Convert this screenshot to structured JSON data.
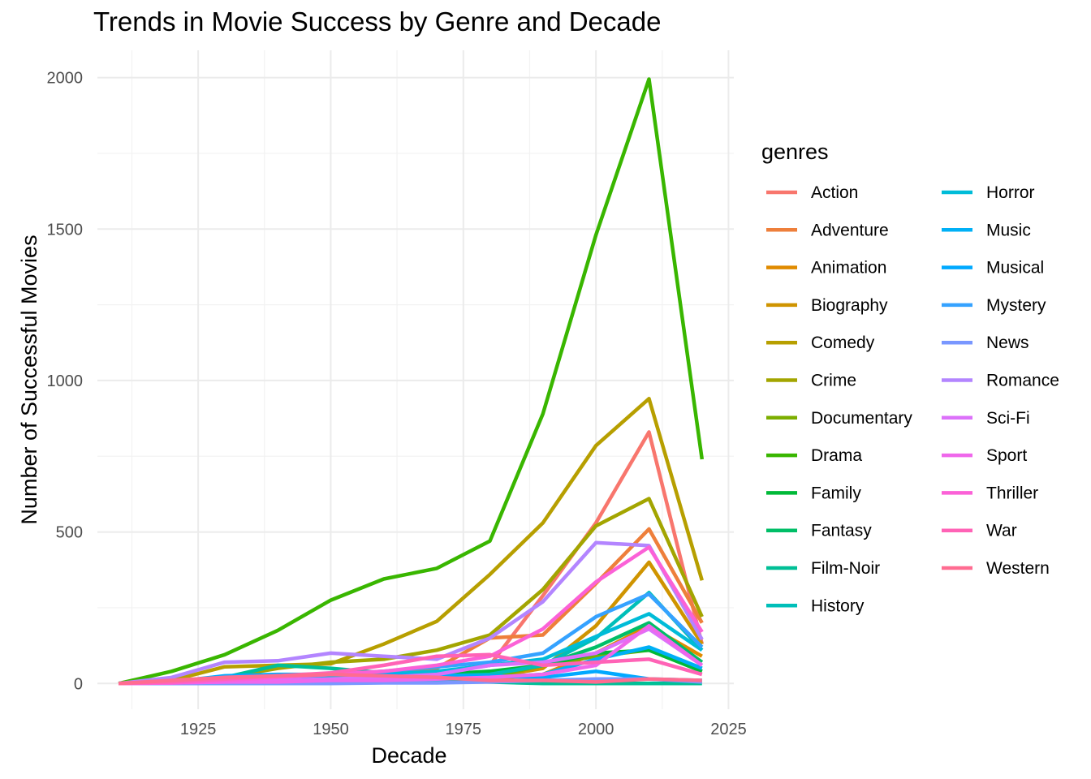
{
  "chart_data": {
    "type": "line",
    "title": "Trends in Movie Success by Genre and Decade",
    "xlabel": "Decade",
    "ylabel": "Number of Successful Movies",
    "xlim": [
      1906,
      2026
    ],
    "ylim": [
      -85,
      2090
    ],
    "x_ticks": [
      1925,
      1950,
      1975,
      2000,
      2025
    ],
    "y_ticks": [
      0,
      500,
      1000,
      1500,
      2000
    ],
    "grid": true,
    "legend": {
      "title": "genres",
      "position": "right",
      "columns": 2
    },
    "x": [
      1910,
      1920,
      1930,
      1940,
      1950,
      1960,
      1970,
      1980,
      1990,
      2000,
      2010,
      2020
    ],
    "series": [
      {
        "name": "Action",
        "color": "#F8766D",
        "values": [
          0,
          2,
          10,
          15,
          20,
          25,
          35,
          60,
          290,
          530,
          830,
          130
        ]
      },
      {
        "name": "Adventure",
        "color": "#EE7F3B",
        "values": [
          0,
          5,
          15,
          20,
          25,
          30,
          50,
          150,
          160,
          330,
          510,
          200
        ]
      },
      {
        "name": "Animation",
        "color": "#E08B00",
        "values": [
          0,
          0,
          2,
          5,
          5,
          8,
          10,
          15,
          30,
          100,
          190,
          90
        ]
      },
      {
        "name": "Biography",
        "color": "#CF9400",
        "values": [
          0,
          2,
          5,
          5,
          10,
          10,
          15,
          20,
          50,
          190,
          400,
          130
        ]
      },
      {
        "name": "Comedy",
        "color": "#B79F00",
        "values": [
          0,
          10,
          55,
          60,
          65,
          130,
          205,
          360,
          530,
          785,
          940,
          340
        ]
      },
      {
        "name": "Crime",
        "color": "#A3A500",
        "values": [
          0,
          5,
          20,
          50,
          70,
          80,
          110,
          160,
          310,
          520,
          610,
          220
        ]
      },
      {
        "name": "Documentary",
        "color": "#7CAE00",
        "values": [
          0,
          0,
          2,
          2,
          5,
          5,
          10,
          20,
          60,
          90,
          110,
          40
        ]
      },
      {
        "name": "Drama",
        "color": "#39B600",
        "values": [
          0,
          40,
          95,
          175,
          275,
          345,
          380,
          470,
          890,
          1480,
          1995,
          740
        ]
      },
      {
        "name": "Family",
        "color": "#00B938",
        "values": [
          0,
          0,
          5,
          5,
          10,
          20,
          30,
          40,
          60,
          100,
          110,
          40
        ]
      },
      {
        "name": "Fantasy",
        "color": "#00BE67",
        "values": [
          0,
          2,
          5,
          5,
          10,
          15,
          20,
          30,
          60,
          120,
          200,
          70
        ]
      },
      {
        "name": "Film-Noir",
        "color": "#00BF96",
        "values": [
          0,
          0,
          20,
          60,
          50,
          35,
          10,
          5,
          0,
          0,
          0,
          0
        ]
      },
      {
        "name": "History",
        "color": "#00BFB9",
        "values": [
          0,
          2,
          5,
          10,
          15,
          20,
          25,
          30,
          60,
          150,
          300,
          110
        ]
      },
      {
        "name": "Horror",
        "color": "#00BCD8",
        "values": [
          0,
          5,
          10,
          20,
          25,
          30,
          40,
          60,
          80,
          155,
          230,
          110
        ]
      },
      {
        "name": "Music",
        "color": "#00B0F6",
        "values": [
          0,
          2,
          5,
          5,
          10,
          10,
          15,
          20,
          30,
          80,
          120,
          50
        ]
      },
      {
        "name": "Musical",
        "color": "#00A9FF",
        "values": [
          0,
          5,
          25,
          30,
          30,
          30,
          25,
          25,
          20,
          40,
          15,
          10
        ]
      },
      {
        "name": "Mystery",
        "color": "#35A2FF",
        "values": [
          0,
          5,
          15,
          25,
          30,
          40,
          55,
          70,
          100,
          220,
          295,
          120
        ]
      },
      {
        "name": "News",
        "color": "#7997FF",
        "values": [
          0,
          0,
          0,
          0,
          0,
          2,
          2,
          5,
          10,
          15,
          15,
          5
        ]
      },
      {
        "name": "Romance",
        "color": "#B385FF",
        "values": [
          0,
          20,
          70,
          75,
          100,
          90,
          80,
          150,
          270,
          465,
          455,
          145
        ]
      },
      {
        "name": "Sci-Fi",
        "color": "#DC71FA",
        "values": [
          0,
          2,
          5,
          10,
          15,
          20,
          30,
          60,
          70,
          100,
          180,
          60
        ]
      },
      {
        "name": "Sport",
        "color": "#EF67EB",
        "values": [
          0,
          2,
          5,
          5,
          10,
          10,
          15,
          20,
          30,
          60,
          190,
          60
        ]
      },
      {
        "name": "Thriller",
        "color": "#FB61D7",
        "values": [
          0,
          2,
          10,
          20,
          30,
          40,
          60,
          90,
          180,
          335,
          450,
          170
        ]
      },
      {
        "name": "War",
        "color": "#FF63B6",
        "values": [
          0,
          5,
          15,
          25,
          35,
          60,
          90,
          95,
          60,
          70,
          80,
          30
        ]
      },
      {
        "name": "Western",
        "color": "#FF6C91",
        "values": [
          0,
          10,
          20,
          25,
          30,
          25,
          20,
          10,
          10,
          5,
          15,
          10
        ]
      }
    ]
  }
}
